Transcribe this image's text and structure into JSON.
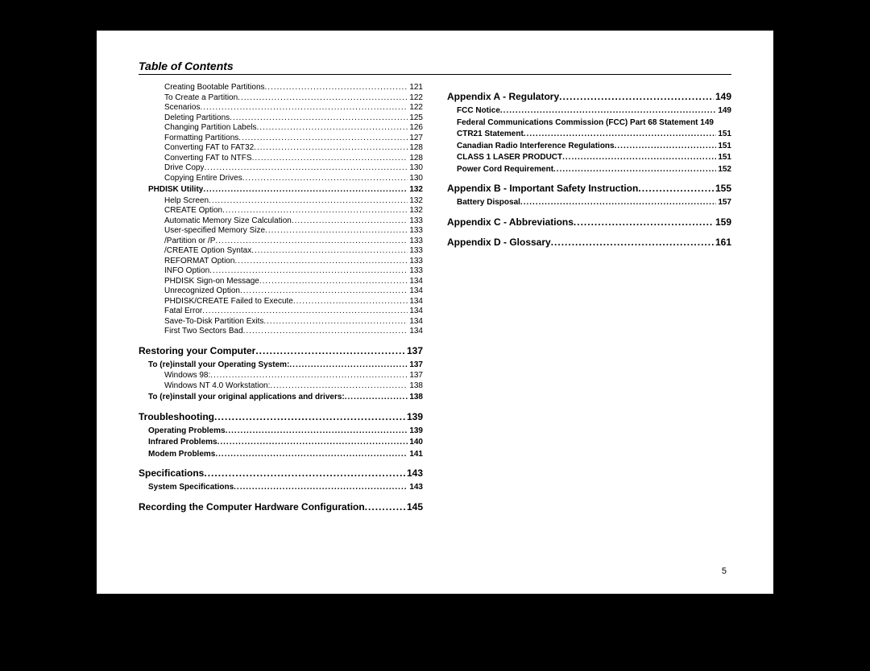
{
  "header": "Table of Contents",
  "pageNumber": "5",
  "left": [
    {
      "level": 2,
      "title": "Creating Bootable Partitions",
      "page": "121"
    },
    {
      "level": 2,
      "title": "To Create a Partition",
      "page": "122"
    },
    {
      "level": 2,
      "title": "Scenarios",
      "page": "122"
    },
    {
      "level": 2,
      "title": "Deleting Partitions",
      "page": "125"
    },
    {
      "level": 2,
      "title": "Changing Partition Labels",
      "page": "126"
    },
    {
      "level": 2,
      "title": "Formatting Partitions",
      "page": "127"
    },
    {
      "level": 2,
      "title": "Converting FAT to FAT32",
      "page": "128"
    },
    {
      "level": 2,
      "title": "Converting FAT to NTFS",
      "page": "128"
    },
    {
      "level": 2,
      "title": "Drive Copy",
      "page": "130"
    },
    {
      "level": 2,
      "title": "Copying Entire Drives",
      "page": "130"
    },
    {
      "level": 1,
      "title": "PHDISK Utility",
      "page": "132"
    },
    {
      "level": 2,
      "title": "Help Screen",
      "page": "132"
    },
    {
      "level": 2,
      "title": "CREATE Option",
      "page": "132"
    },
    {
      "level": 2,
      "title": "Automatic Memory Size Calculation",
      "page": "133"
    },
    {
      "level": 2,
      "title": "User-specified Memory Size",
      "page": "133"
    },
    {
      "level": 2,
      "title": "/Partition or /P",
      "page": "133"
    },
    {
      "level": 2,
      "title": "/CREATE Option Syntax",
      "page": "133"
    },
    {
      "level": 2,
      "title": "REFORMAT Option",
      "page": "133"
    },
    {
      "level": 2,
      "title": "INFO Option",
      "page": "133"
    },
    {
      "level": 2,
      "title": "PHDISK Sign-on Message",
      "page": "134"
    },
    {
      "level": 2,
      "title": "Unrecognized Option",
      "page": "134"
    },
    {
      "level": 2,
      "title": "PHDISK/CREATE Failed to Execute",
      "page": "134"
    },
    {
      "level": 2,
      "title": "Fatal Error",
      "page": "134"
    },
    {
      "level": 2,
      "title": "Save-To-Disk Partition Exits",
      "page": "134"
    },
    {
      "level": 2,
      "title": "First Two Sectors Bad",
      "page": "134"
    },
    {
      "level": 0,
      "title": "Restoring your Computer",
      "page": "137"
    },
    {
      "level": 1,
      "title": "To (re)install your Operating System:",
      "page": "137"
    },
    {
      "level": 2,
      "title": "Windows 98:",
      "page": "137"
    },
    {
      "level": 2,
      "title": "Windows NT 4.0 Workstation:",
      "page": "138"
    },
    {
      "level": 1,
      "title": "To (re)install your original applications and drivers:",
      "page": "138"
    },
    {
      "level": 0,
      "title": "Troubleshooting",
      "page": "139"
    },
    {
      "level": 1,
      "title": "Operating Problems",
      "page": "139"
    },
    {
      "level": 1,
      "title": "Infrared Problems",
      "page": "140"
    },
    {
      "level": 1,
      "title": "Modem Problems",
      "page": "141"
    },
    {
      "level": 0,
      "title": "Specifications",
      "page": "143"
    },
    {
      "level": 1,
      "title": "System Specifications",
      "page": "143"
    },
    {
      "level": 0,
      "title": "Recording the Computer Hardware Configuration",
      "page": "145"
    }
  ],
  "right": [
    {
      "level": 0,
      "title": "Appendix A - Regulatory",
      "page": "149"
    },
    {
      "level": 1,
      "title": "FCC Notice",
      "page": "149"
    },
    {
      "level": 1,
      "title": "Federal Communications Commission (FCC) Part 68 Statement",
      "page": "149",
      "nodots": true,
      "wrap": true
    },
    {
      "level": 1,
      "title": "CTR21 Statement",
      "page": "151"
    },
    {
      "level": 1,
      "title": "Canadian Radio Interference Regulations",
      "page": "151"
    },
    {
      "level": 1,
      "title": "CLASS 1 LASER PRODUCT",
      "page": "151"
    },
    {
      "level": 1,
      "title": "Power Cord Requirement",
      "page": "152"
    },
    {
      "level": 0,
      "title": "Appendix B - Important Safety Instruction",
      "page": "155"
    },
    {
      "level": 1,
      "title": "Battery Disposal",
      "page": "157"
    },
    {
      "level": 0,
      "title": "Appendix C - Abbreviations",
      "page": "159"
    },
    {
      "level": 0,
      "title": "Appendix D - Glossary",
      "page": "161"
    }
  ]
}
